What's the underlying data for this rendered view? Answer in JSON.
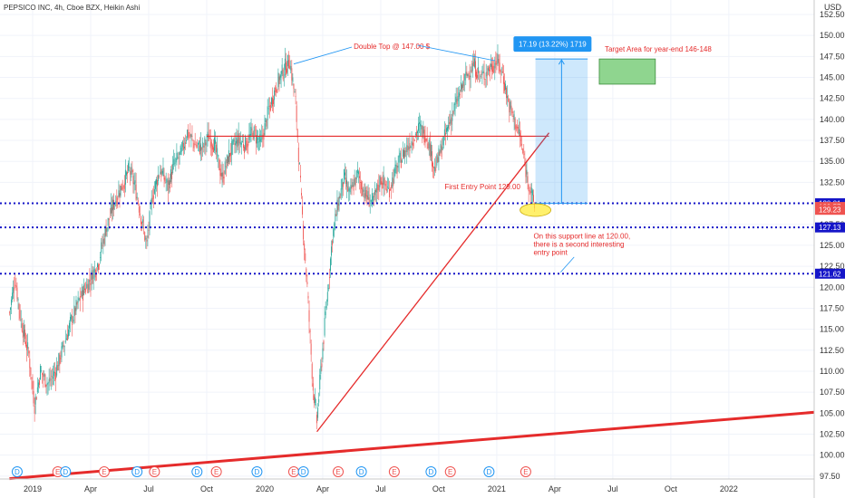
{
  "chart_data": {
    "type": "candlestick",
    "title": "PEPSICO INC, 4h, Cboe BZX, Heikin Ashi",
    "currency": "USD",
    "ylim": [
      97.5,
      152.5
    ],
    "y_ticks": [
      97.5,
      100,
      102.5,
      105,
      107.5,
      110,
      112.5,
      115,
      117.5,
      120,
      122.5,
      125,
      127.5,
      130,
      132.5,
      135,
      137.5,
      140,
      142.5,
      145,
      147.5,
      150,
      152.5
    ],
    "x_ticks": [
      {
        "label": "2019",
        "t": 0.0
      },
      {
        "label": "Apr",
        "t": 3.0
      },
      {
        "label": "Jul",
        "t": 6.0
      },
      {
        "label": "Oct",
        "t": 9.0
      },
      {
        "label": "2020",
        "t": 12.0
      },
      {
        "label": "Apr",
        "t": 15.0
      },
      {
        "label": "Jul",
        "t": 18.0
      },
      {
        "label": "Oct",
        "t": 21.0
      },
      {
        "label": "2021",
        "t": 24.0
      },
      {
        "label": "Apr",
        "t": 27.0
      },
      {
        "label": "Jul",
        "t": 30.0
      },
      {
        "label": "Oct",
        "t": 33.0
      },
      {
        "label": "2022",
        "t": 36.0
      }
    ],
    "colors": {
      "up": "#26a69a",
      "down": "#ef5350",
      "annotation": "#e52b2b",
      "level": "#1515c8",
      "projection": "#2196f3",
      "target": "#8fd58f"
    },
    "price_path": [
      [
        -1.2,
        117.0
      ],
      [
        -0.9,
        121.0
      ],
      [
        -0.6,
        116.0
      ],
      [
        -0.2,
        112.0
      ],
      [
        0.1,
        106.0
      ],
      [
        0.4,
        110.0
      ],
      [
        0.8,
        108.5
      ],
      [
        1.2,
        110.0
      ],
      [
        1.6,
        113.0
      ],
      [
        2.0,
        116.0
      ],
      [
        2.5,
        119.0
      ],
      [
        3.0,
        121.0
      ],
      [
        3.4,
        123.0
      ],
      [
        3.8,
        127.0
      ],
      [
        4.2,
        130.0
      ],
      [
        4.6,
        132.0
      ],
      [
        5.0,
        134.0
      ],
      [
        5.3,
        132.0
      ],
      [
        5.6,
        128.5
      ],
      [
        5.9,
        125.0
      ],
      [
        6.2,
        131.0
      ],
      [
        6.6,
        134.0
      ],
      [
        7.0,
        132.0
      ],
      [
        7.3,
        134.5
      ],
      [
        7.7,
        136.0
      ],
      [
        8.0,
        138.5
      ],
      [
        8.4,
        137.0
      ],
      [
        8.8,
        136.5
      ],
      [
        9.1,
        138.0
      ],
      [
        9.4,
        137.0
      ],
      [
        9.8,
        133.0
      ],
      [
        10.2,
        136.0
      ],
      [
        10.6,
        137.5
      ],
      [
        11.0,
        137.0
      ],
      [
        11.4,
        138.5
      ],
      [
        11.8,
        137.0
      ],
      [
        12.2,
        141.0
      ],
      [
        12.6,
        144.0
      ],
      [
        13.0,
        146.0
      ],
      [
        13.3,
        147.0
      ],
      [
        13.6,
        142.0
      ],
      [
        13.9,
        130.0
      ],
      [
        14.2,
        120.0
      ],
      [
        14.5,
        108.0
      ],
      [
        14.7,
        104.0
      ],
      [
        14.9,
        110.0
      ],
      [
        15.2,
        118.0
      ],
      [
        15.5,
        126.0
      ],
      [
        15.8,
        130.0
      ],
      [
        16.1,
        133.0
      ],
      [
        16.4,
        131.0
      ],
      [
        16.8,
        133.5
      ],
      [
        17.2,
        131.0
      ],
      [
        17.6,
        130.0
      ],
      [
        18.0,
        133.0
      ],
      [
        18.4,
        131.5
      ],
      [
        18.8,
        134.0
      ],
      [
        19.2,
        136.0
      ],
      [
        19.6,
        137.5
      ],
      [
        20.0,
        139.0
      ],
      [
        20.4,
        138.0
      ],
      [
        20.8,
        134.0
      ],
      [
        21.2,
        137.0
      ],
      [
        21.6,
        140.0
      ],
      [
        22.0,
        142.5
      ],
      [
        22.4,
        145.0
      ],
      [
        22.8,
        146.5
      ],
      [
        23.2,
        145.0
      ],
      [
        23.6,
        146.0
      ],
      [
        24.0,
        147.0
      ],
      [
        24.3,
        145.5
      ],
      [
        24.6,
        142.0
      ],
      [
        24.9,
        140.0
      ],
      [
        25.2,
        138.0
      ],
      [
        25.5,
        134.0
      ],
      [
        25.8,
        131.0
      ],
      [
        26.0,
        129.2
      ]
    ],
    "horizontal_levels": [
      {
        "price": 130.01,
        "label": "130.01",
        "color": "#1515c8"
      },
      {
        "price": 127.13,
        "label": "127.13",
        "color": "#1515c8"
      },
      {
        "price": 121.62,
        "label": "121.62",
        "color": "#1515c8"
      }
    ],
    "price_tags": [
      {
        "price": 129.57,
        "label": "129.57",
        "color": "#ef5350"
      },
      {
        "price": 129.23,
        "label": "129.23",
        "color": "#ef5350"
      }
    ],
    "resistance_line": {
      "from": [
        9.0,
        138.0
      ],
      "to": [
        26.7,
        138.0
      ]
    },
    "support_trendline": {
      "from": [
        14.7,
        102.8
      ],
      "to": [
        26.7,
        138.4
      ]
    },
    "long_trendline": {
      "from": [
        -1.2,
        97.2
      ],
      "to": [
        43.0,
        105.6
      ]
    },
    "projection_box": {
      "t_start": 26.0,
      "t_end": 28.7,
      "price_low": 130.0,
      "price_high": 147.2
    },
    "projection_label": "17.19 (13.22%) 1719",
    "target_box": {
      "t_start": 29.3,
      "t_end": 32.2,
      "price_low": 144.2,
      "price_high": 147.2
    },
    "target_label": "Target Area for year-end 146-148",
    "double_top_label": "Double Top @ 147.00 $",
    "first_entry_label": "First Entry Point 129.00",
    "support_note": [
      "On this support line at 120.00,",
      "there is a second interesting",
      "entry point"
    ],
    "events": [
      {
        "t": -0.8,
        "label": "D",
        "kind": "dividend"
      },
      {
        "t": 1.3,
        "label": "E",
        "kind": "earnings"
      },
      {
        "t": 1.7,
        "label": "D",
        "kind": "dividend"
      },
      {
        "t": 3.7,
        "label": "E",
        "kind": "earnings"
      },
      {
        "t": 5.4,
        "label": "D",
        "kind": "dividend"
      },
      {
        "t": 6.3,
        "label": "E",
        "kind": "earnings"
      },
      {
        "t": 8.5,
        "label": "D",
        "kind": "dividend"
      },
      {
        "t": 9.5,
        "label": "E",
        "kind": "earnings"
      },
      {
        "t": 11.6,
        "label": "D",
        "kind": "dividend"
      },
      {
        "t": 13.5,
        "label": "E",
        "kind": "earnings"
      },
      {
        "t": 14.0,
        "label": "D",
        "kind": "dividend"
      },
      {
        "t": 15.8,
        "label": "E",
        "kind": "earnings"
      },
      {
        "t": 17.0,
        "label": "D",
        "kind": "dividend"
      },
      {
        "t": 18.7,
        "label": "E",
        "kind": "earnings"
      },
      {
        "t": 20.6,
        "label": "D",
        "kind": "dividend"
      },
      {
        "t": 21.6,
        "label": "E",
        "kind": "earnings"
      },
      {
        "t": 23.6,
        "label": "D",
        "kind": "dividend"
      },
      {
        "t": 25.5,
        "label": "E",
        "kind": "earnings"
      }
    ]
  }
}
